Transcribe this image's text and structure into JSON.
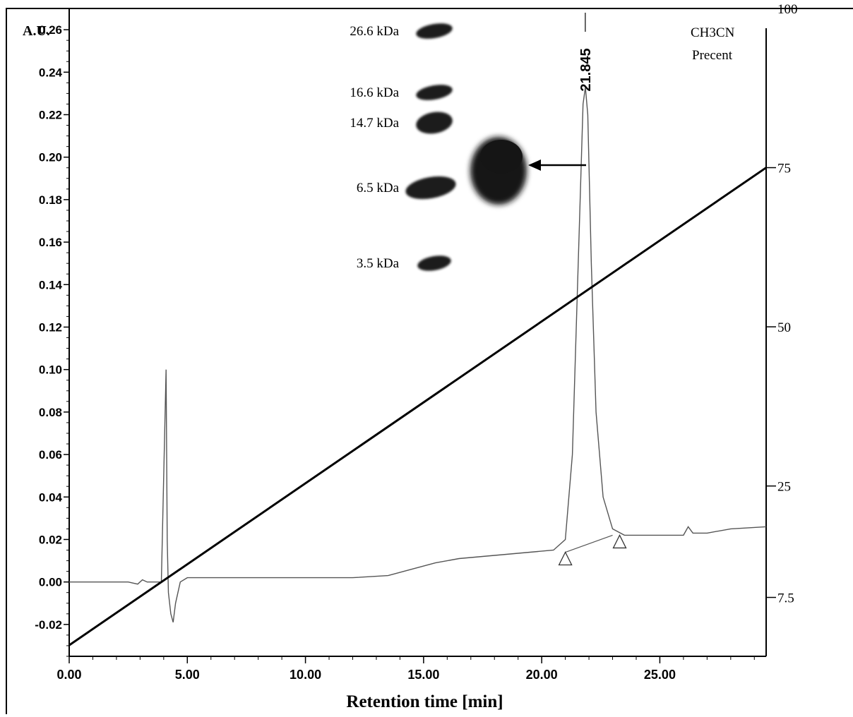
{
  "chart_data": {
    "type": "line",
    "title": "",
    "xlabel": "Retention time [min]",
    "ylabel_left": "A.U.",
    "ylabel_right": [
      "CH3CN",
      "Precent"
    ],
    "xlim": [
      0,
      29.5
    ],
    "ylim_left": [
      -0.035,
      0.27
    ],
    "ylim_right": [
      -1.75,
      100
    ],
    "x_ticks": [
      0,
      5,
      10,
      15,
      20,
      25
    ],
    "x_tick_labels": [
      "0.00",
      "5.00",
      "10.00",
      "15.00",
      "20.00",
      "25.00"
    ],
    "y_ticks": [
      -0.02,
      0.0,
      0.02,
      0.04,
      0.06,
      0.08,
      0.1,
      0.12,
      0.14,
      0.16,
      0.18,
      0.2,
      0.22,
      0.24,
      0.26
    ],
    "y_tick_labels": [
      "-0.02",
      "0.00",
      "0.02",
      "0.04",
      "0.06",
      "0.08",
      "0.10",
      "0.12",
      "0.14",
      "0.16",
      "0.18",
      "0.20",
      "0.22",
      "0.24",
      "0.26"
    ],
    "right_ticks": [
      7.5,
      25,
      50,
      75,
      100
    ],
    "right_tick_labels": [
      "7.5",
      "25",
      "50",
      "75",
      "100"
    ],
    "series": [
      {
        "name": "",
        "axis": "left",
        "x": [
          0.0,
          2.5,
          2.9,
          3.1,
          3.3,
          3.9,
          4.1,
          4.15,
          4.2,
          4.3,
          4.4,
          4.5,
          4.7,
          5.0,
          6.0,
          10.0,
          12.0,
          13.5,
          14.5,
          15.5,
          16.5,
          17.5,
          18.5,
          19.5,
          20.5,
          21.0,
          21.3,
          21.6,
          21.75,
          21.85,
          21.95,
          22.1,
          22.3,
          22.6,
          23.0,
          23.5,
          25.0,
          26.0,
          26.2,
          26.4,
          27.0,
          28.0,
          29.5
        ],
        "y": [
          0.0,
          0.0,
          -0.001,
          0.001,
          0.0,
          0.0,
          0.1,
          0.02,
          -0.005,
          -0.015,
          -0.019,
          -0.01,
          0.0,
          0.002,
          0.002,
          0.002,
          0.002,
          0.003,
          0.006,
          0.009,
          0.011,
          0.012,
          0.013,
          0.014,
          0.015,
          0.02,
          0.06,
          0.17,
          0.225,
          0.233,
          0.22,
          0.15,
          0.08,
          0.04,
          0.025,
          0.022,
          0.022,
          0.022,
          0.026,
          0.023,
          0.023,
          0.025,
          0.026
        ]
      },
      {
        "name": "",
        "axis": "right",
        "x": [
          0,
          29.5
        ],
        "y": [
          0,
          75
        ]
      },
      {
        "name": "",
        "axis": "left",
        "x": [
          21.0,
          23.0
        ],
        "y": [
          0.014,
          0.022
        ]
      }
    ],
    "peak_label": {
      "x": 21.845,
      "text": "21.845"
    },
    "integration_markers": [
      21.0,
      23.0
    ],
    "inset_gel": {
      "labels": [
        "26.6 kDa",
        "16.6 kDa",
        "14.7 kDa",
        "6.5 kDa",
        "3.5 kDa"
      ]
    },
    "grid": false,
    "legend": "none"
  },
  "colors": {
    "signal_line": "#555555",
    "gradient_line": "#000000",
    "axes": "#000000",
    "gel_band": "#1a1a1a",
    "sample_spot": "#151515"
  }
}
